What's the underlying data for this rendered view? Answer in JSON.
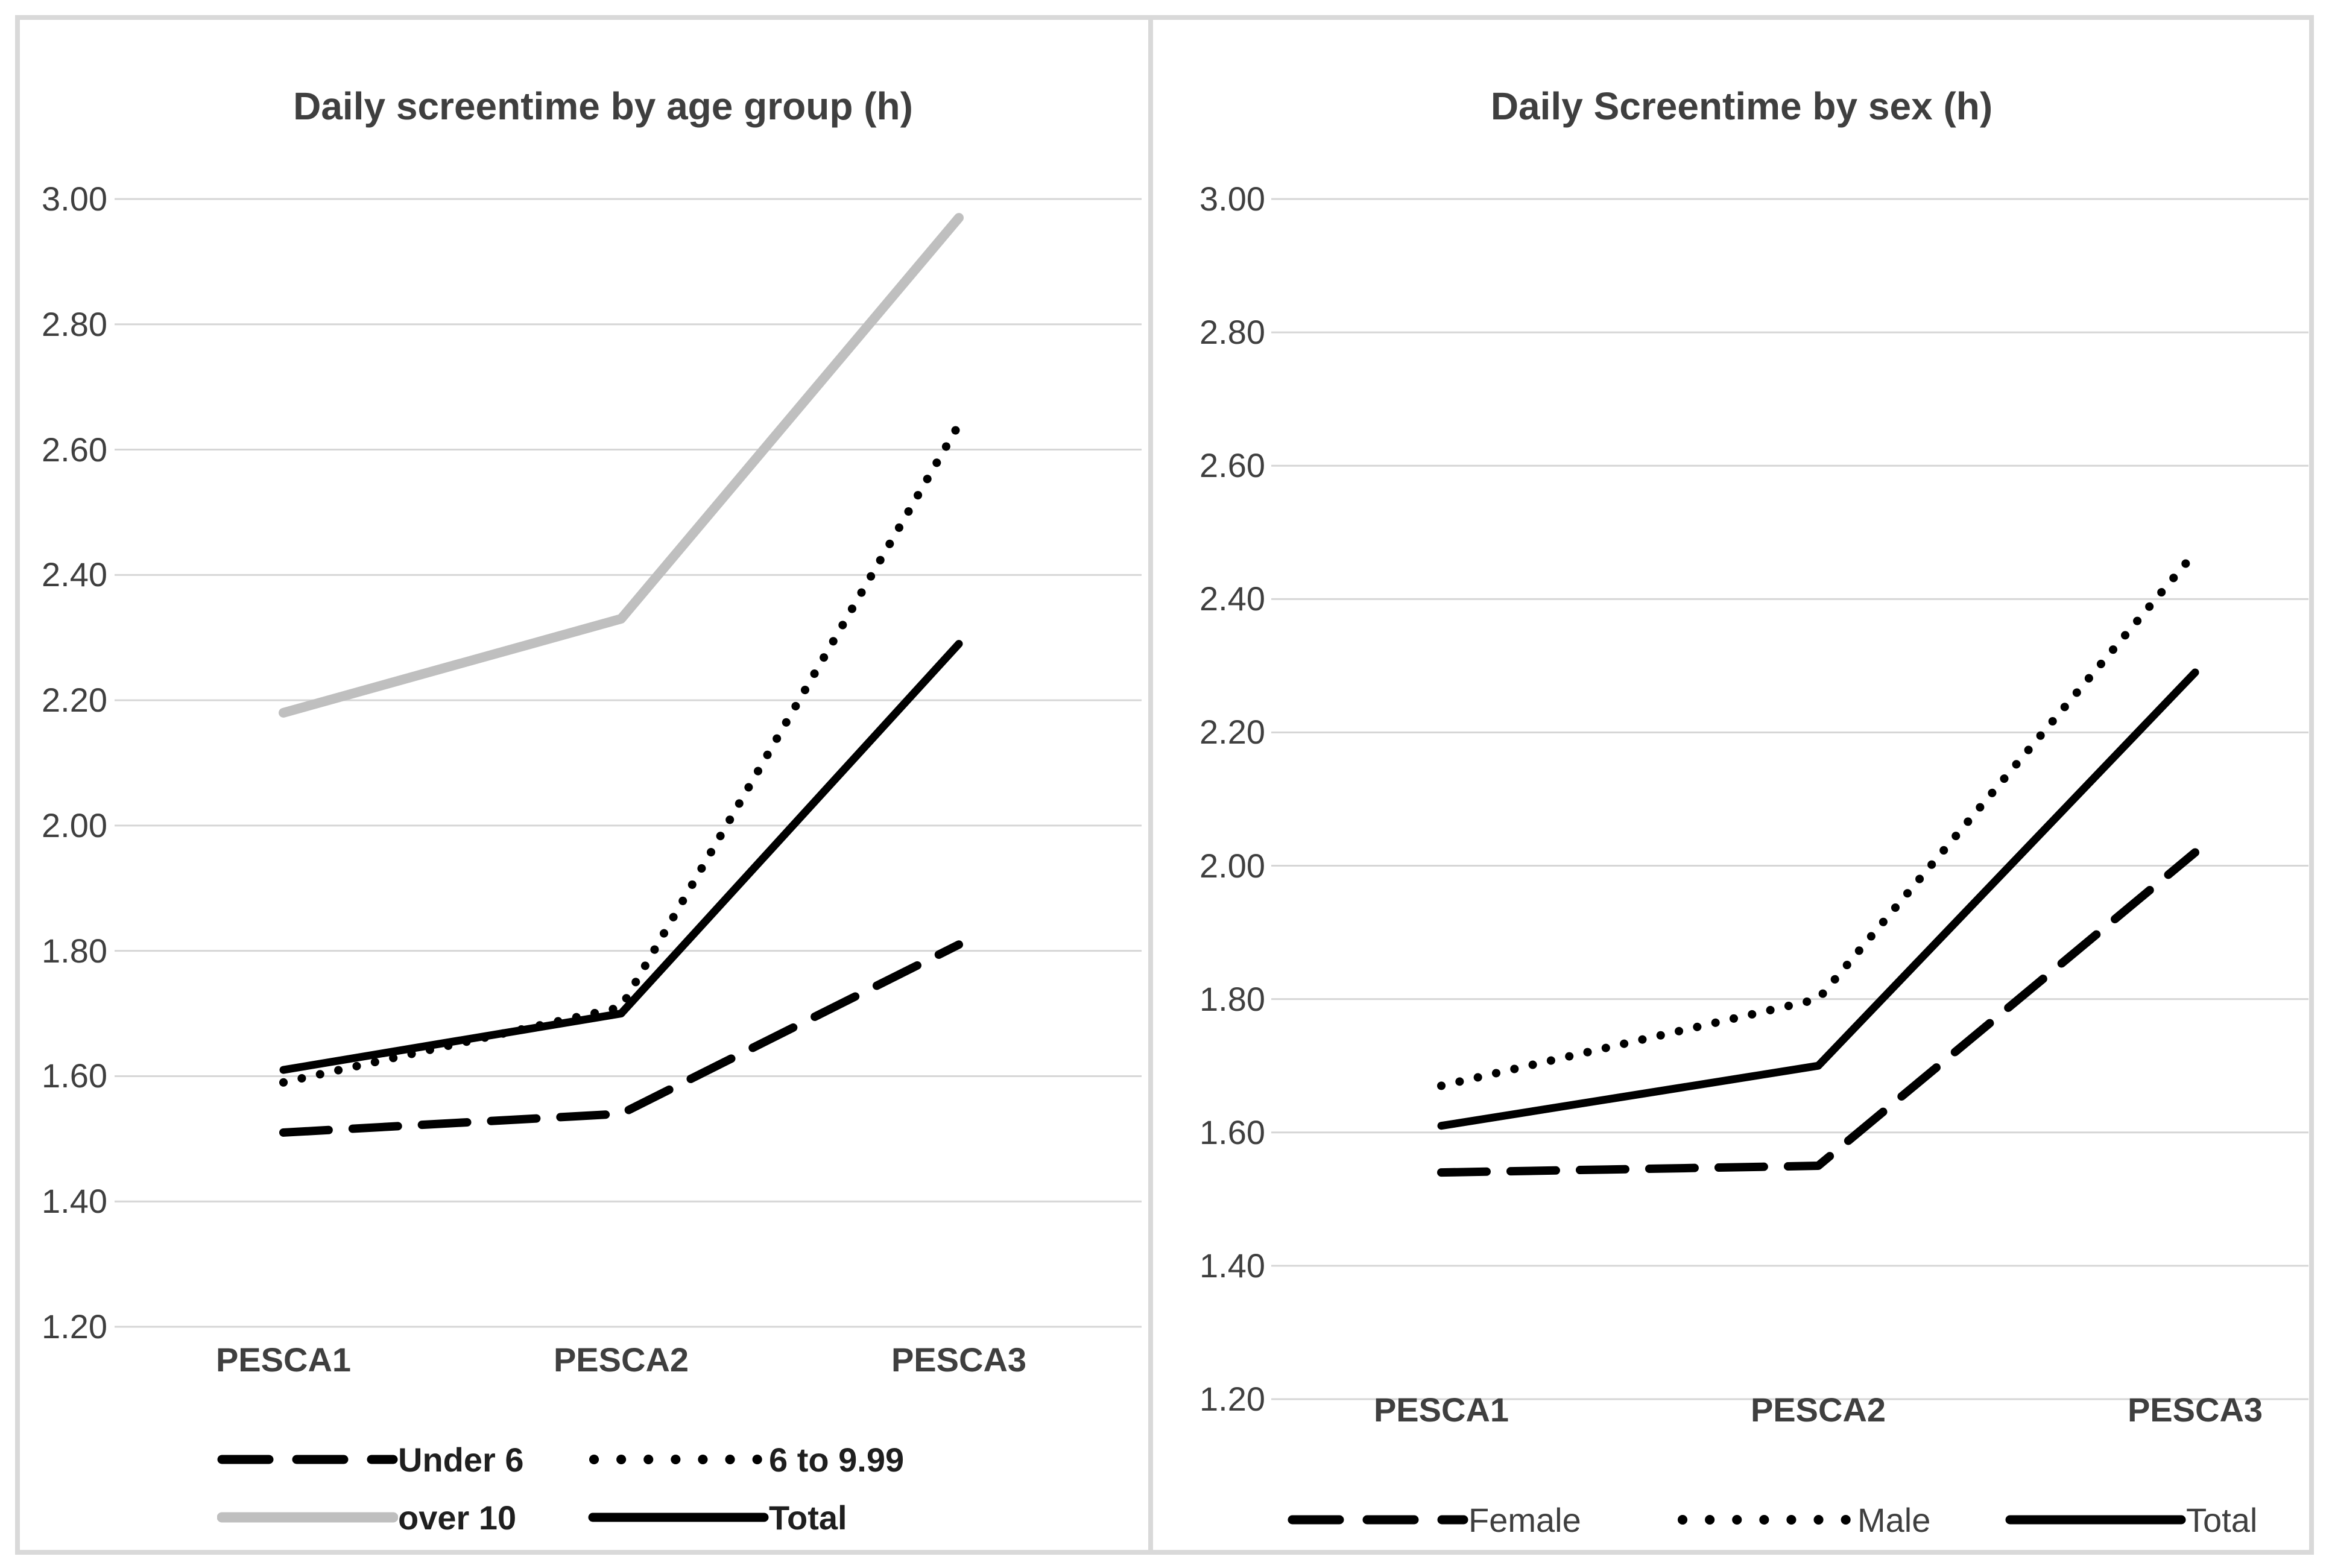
{
  "chart_data": [
    {
      "type": "line",
      "title": "Daily screentime by age group (h)",
      "xlabel": "",
      "ylabel": "",
      "categories": [
        "PESCA1",
        "PESCA2",
        "PESCA3"
      ],
      "y_ticks": [
        "3.00",
        "2.80",
        "2.60",
        "2.40",
        "2.20",
        "2.00",
        "1.80",
        "1.60",
        "1.40",
        "1.20"
      ],
      "ylim": [
        1.2,
        3.0
      ],
      "grid": "horizontal",
      "legend_position": "bottom",
      "series": [
        {
          "name": "Under 6",
          "style": "dashed",
          "color": "#000000",
          "values": [
            1.51,
            1.54,
            1.81
          ]
        },
        {
          "name": "6 to 9.99",
          "style": "dotted",
          "color": "#000000",
          "values": [
            1.59,
            1.71,
            2.64
          ]
        },
        {
          "name": "over 10",
          "style": "solid",
          "color": "#bfbfbf",
          "values": [
            2.18,
            2.33,
            2.97
          ]
        },
        {
          "name": "Total",
          "style": "solid",
          "color": "#000000",
          "values": [
            1.61,
            1.7,
            2.29
          ]
        }
      ]
    },
    {
      "type": "line",
      "title": "Daily Screentime by sex (h)",
      "xlabel": "",
      "ylabel": "",
      "categories": [
        "PESCA1",
        "PESCA2",
        "PESCA3"
      ],
      "y_ticks": [
        "3.00",
        "2.80",
        "2.60",
        "2.40",
        "2.20",
        "2.00",
        "1.80",
        "1.60",
        "1.40",
        "1.20"
      ],
      "ylim": [
        1.2,
        3.0
      ],
      "grid": "horizontal",
      "legend_position": "bottom",
      "series": [
        {
          "name": "Female",
          "style": "dashed",
          "color": "#000000",
          "values": [
            1.54,
            1.55,
            2.02
          ]
        },
        {
          "name": "Male",
          "style": "dotted",
          "color": "#000000",
          "values": [
            1.67,
            1.8,
            2.47
          ]
        },
        {
          "name": "Total",
          "style": "solid",
          "color": "#000000",
          "values": [
            1.61,
            1.7,
            2.29
          ]
        }
      ]
    }
  ],
  "colors": {
    "gridline": "#d6d6d6",
    "panel_border": "#d9d9d9",
    "text": "#3f3f3f",
    "gray_series": "#bfbfbf"
  }
}
